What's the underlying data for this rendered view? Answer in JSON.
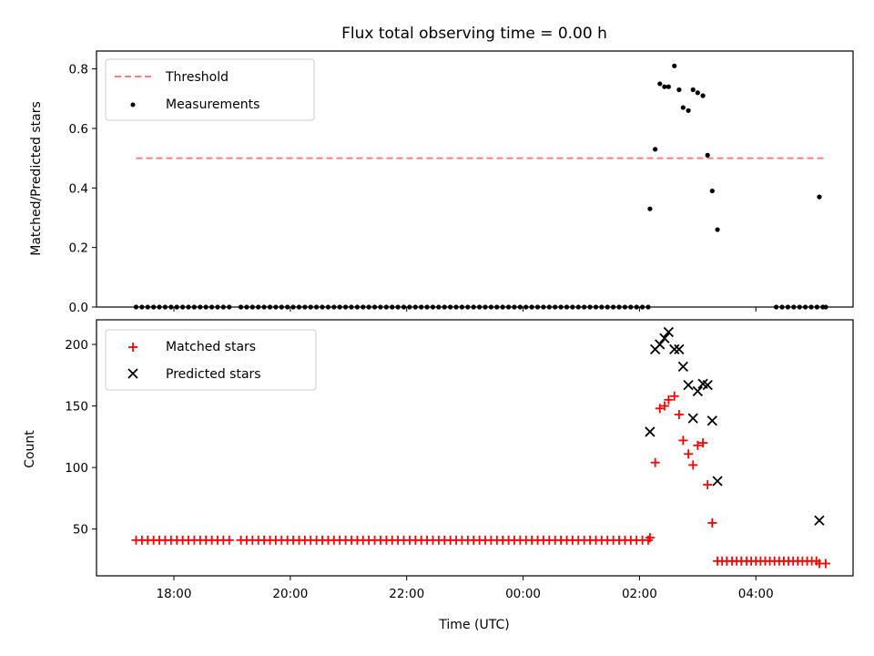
{
  "title": "Flux total observing time = 0.00 h",
  "x_axis": {
    "label": "Time (UTC)",
    "ticks": [
      {
        "v": 18.0,
        "label": "18:00"
      },
      {
        "v": 20.0,
        "label": "20:00"
      },
      {
        "v": 22.0,
        "label": "22:00"
      },
      {
        "v": 24.0,
        "label": "00:00"
      },
      {
        "v": 26.0,
        "label": "02:00"
      },
      {
        "v": 28.0,
        "label": "04:00"
      }
    ],
    "range": [
      16.67,
      29.67
    ]
  },
  "colors": {
    "threshold": "#ff7f7f",
    "measurements": "#000000",
    "matched": "#ff0000",
    "predicted": "#000000"
  },
  "chart_data": [
    {
      "type": "scatter",
      "ylabel": "Matched/Predicted stars",
      "ylim": [
        0,
        0.86
      ],
      "y_ticks": [
        {
          "v": 0.0,
          "label": "0.0"
        },
        {
          "v": 0.2,
          "label": "0.2"
        },
        {
          "v": 0.4,
          "label": "0.4"
        },
        {
          "v": 0.6,
          "label": "0.6"
        },
        {
          "v": 0.8,
          "label": "0.8"
        }
      ],
      "legend": {
        "placement": "upper left",
        "entries": [
          "Threshold",
          "Measurements"
        ]
      },
      "threshold": {
        "name": "Threshold",
        "value": 0.5,
        "x_range": [
          17.35,
          29.2
        ]
      },
      "measurements": {
        "name": "Measurements",
        "zero_segments": [
          [
            17.35,
            18.95,
            0.1
          ],
          [
            19.15,
            26.15,
            0.1
          ],
          [
            28.35,
            29.15,
            0.1
          ]
        ],
        "points": [
          [
            26.18,
            0.33
          ],
          [
            26.27,
            0.53
          ],
          [
            26.35,
            0.75
          ],
          [
            26.43,
            0.74
          ],
          [
            26.5,
            0.74
          ],
          [
            26.6,
            0.81
          ],
          [
            26.68,
            0.73
          ],
          [
            26.75,
            0.67
          ],
          [
            26.84,
            0.66
          ],
          [
            26.92,
            0.73
          ],
          [
            27.0,
            0.72
          ],
          [
            27.09,
            0.71
          ],
          [
            27.17,
            0.51
          ],
          [
            27.25,
            0.39
          ],
          [
            27.34,
            0.26
          ],
          [
            29.09,
            0.37
          ],
          [
            29.2,
            0.0
          ]
        ]
      }
    },
    {
      "type": "scatter",
      "ylabel": "Count",
      "ylim": [
        12,
        220
      ],
      "y_ticks": [
        {
          "v": 50,
          "label": "50"
        },
        {
          "v": 100,
          "label": "100"
        },
        {
          "v": 150,
          "label": "150"
        },
        {
          "v": 200,
          "label": "200"
        }
      ],
      "legend": {
        "placement": "upper left",
        "entries": [
          "Matched stars",
          "Predicted stars"
        ]
      },
      "matched": {
        "name": "Matched stars",
        "segments": [
          [
            17.35,
            18.95,
            0.1,
            41
          ],
          [
            19.15,
            26.15,
            0.1,
            41
          ],
          [
            28.0,
            29.05,
            0.08,
            24
          ]
        ],
        "points": [
          [
            26.18,
            43
          ],
          [
            26.27,
            104
          ],
          [
            26.35,
            148
          ],
          [
            26.43,
            150
          ],
          [
            26.5,
            155
          ],
          [
            26.6,
            158
          ],
          [
            26.68,
            143
          ],
          [
            26.75,
            122
          ],
          [
            26.84,
            111
          ],
          [
            26.92,
            102
          ],
          [
            27.0,
            118
          ],
          [
            27.09,
            120
          ],
          [
            27.17,
            86
          ],
          [
            27.25,
            55
          ],
          [
            27.34,
            24
          ],
          [
            27.42,
            24
          ],
          [
            27.5,
            24
          ],
          [
            27.59,
            24
          ],
          [
            27.67,
            24
          ],
          [
            27.75,
            24
          ],
          [
            27.84,
            24
          ],
          [
            27.92,
            24
          ],
          [
            29.09,
            22
          ],
          [
            29.2,
            22
          ]
        ]
      },
      "predicted": {
        "name": "Predicted stars",
        "points": [
          [
            26.18,
            129
          ],
          [
            26.27,
            196
          ],
          [
            26.35,
            200
          ],
          [
            26.43,
            205
          ],
          [
            26.5,
            210
          ],
          [
            26.6,
            196
          ],
          [
            26.68,
            196
          ],
          [
            26.75,
            182
          ],
          [
            26.84,
            167
          ],
          [
            26.92,
            140
          ],
          [
            27.0,
            162
          ],
          [
            27.09,
            168
          ],
          [
            27.17,
            167
          ],
          [
            27.25,
            138
          ],
          [
            27.34,
            89
          ],
          [
            29.09,
            57
          ]
        ]
      }
    }
  ]
}
